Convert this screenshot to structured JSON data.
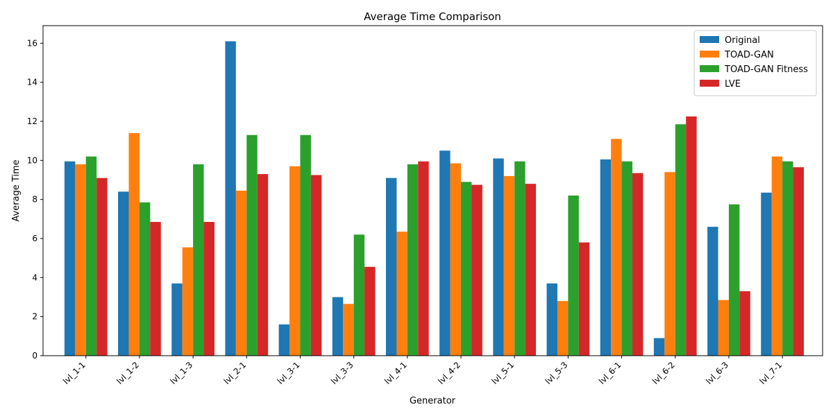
{
  "chart_data": {
    "type": "bar",
    "title": "Average Time Comparison",
    "xlabel": "Generator",
    "ylabel": "Average Time",
    "ylim": [
      0,
      16.9
    ],
    "yticks": [
      0,
      2,
      4,
      6,
      8,
      10,
      12,
      14,
      16
    ],
    "grid": false,
    "legend_position": "top-right",
    "categories": [
      "lvl_1-1",
      "lvl_1-2",
      "lvl_1-3",
      "lvl_2-1",
      "lvl_3-1",
      "lvl_3-3",
      "lvl_4-1",
      "lvl_4-2",
      "lvl_5-1",
      "lvl_5-3",
      "lvl_6-1",
      "lvl_6-2",
      "lvl_6-3",
      "lvl_7-1"
    ],
    "series": [
      {
        "name": "Original",
        "color": "#1f77b4",
        "values": [
          9.95,
          8.4,
          3.7,
          16.1,
          1.6,
          3.0,
          9.1,
          10.5,
          10.1,
          3.7,
          10.05,
          0.9,
          6.6,
          8.35
        ]
      },
      {
        "name": "TOAD-GAN",
        "color": "#ff7f0e",
        "values": [
          9.8,
          11.4,
          5.55,
          8.45,
          9.7,
          2.65,
          6.35,
          9.85,
          9.2,
          2.8,
          11.1,
          9.4,
          2.85,
          10.2
        ]
      },
      {
        "name": "TOAD-GAN Fitness",
        "color": "#2ca02c",
        "values": [
          10.2,
          7.85,
          9.8,
          11.3,
          11.3,
          6.2,
          9.8,
          8.9,
          9.95,
          8.2,
          9.95,
          11.85,
          7.75,
          9.95
        ]
      },
      {
        "name": "LVE",
        "color": "#d62728",
        "values": [
          9.1,
          6.85,
          6.85,
          9.3,
          9.25,
          4.55,
          9.95,
          8.75,
          8.8,
          5.8,
          9.35,
          12.25,
          3.3,
          9.65
        ]
      }
    ]
  }
}
